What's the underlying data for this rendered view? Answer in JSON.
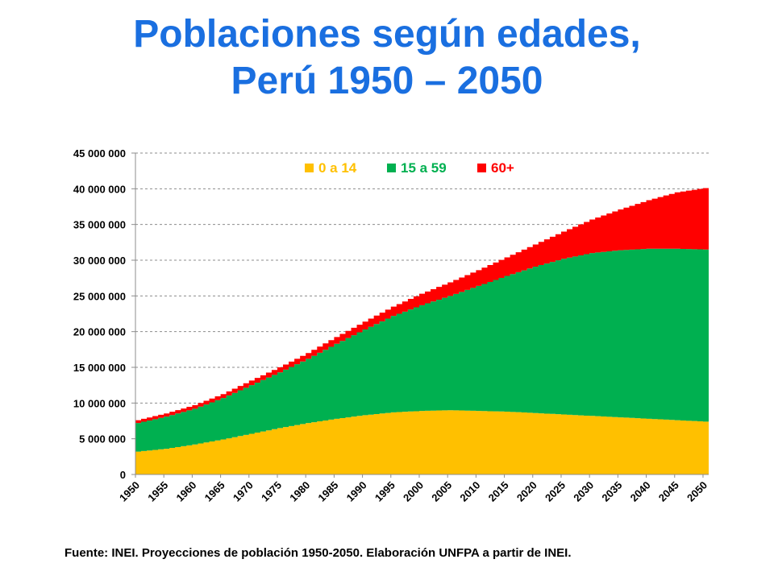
{
  "title": {
    "line1": "Poblaciones según edades,",
    "line2": "Perú 1950 – 2050"
  },
  "source": "Fuente: INEI. Proyecciones de población 1950-2050. Elaboración UNFPA a partir de INEI.",
  "colors": {
    "title": "#1a6fe0",
    "age_0_14": "#ffc000",
    "age_15_59": "#00b050",
    "age_60_plus": "#ff0000"
  },
  "chart_data": {
    "type": "area",
    "stacked": true,
    "x": [
      1950,
      1955,
      1960,
      1965,
      1970,
      1975,
      1980,
      1985,
      1990,
      1995,
      2000,
      2005,
      2010,
      2015,
      2020,
      2025,
      2030,
      2035,
      2040,
      2045,
      2050
    ],
    "series": [
      {
        "name": "0 a 14",
        "color": "#ffc000",
        "values": [
          3200000,
          3600000,
          4200000,
          4900000,
          5700000,
          6500000,
          7200000,
          7800000,
          8300000,
          8700000,
          8900000,
          9000000,
          8900000,
          8800000,
          8600000,
          8400000,
          8200000,
          8000000,
          7800000,
          7600000,
          7400000
        ]
      },
      {
        "name": "15 a 59",
        "color": "#00b050",
        "values": [
          4000000,
          4500000,
          5000000,
          5800000,
          6800000,
          7800000,
          9000000,
          10500000,
          12000000,
          13500000,
          14800000,
          16000000,
          17500000,
          19000000,
          20500000,
          21800000,
          22800000,
          23400000,
          23800000,
          24000000,
          24100000
        ]
      },
      {
        "name": "60+",
        "color": "#ff0000",
        "values": [
          400000,
          450000,
          500000,
          550000,
          650000,
          700000,
          800000,
          950000,
          1100000,
          1300000,
          1600000,
          1900000,
          2200000,
          2600000,
          3100000,
          3800000,
          4700000,
          5700000,
          6800000,
          7900000,
          8600000
        ]
      }
    ],
    "y_ticks": [
      "0",
      "5 000 000",
      "10 000 000",
      "15 000 000",
      "20 000 000",
      "25 000 000",
      "30 000 000",
      "35 000 000",
      "40 000 000",
      "45 000 000"
    ],
    "ylim": [
      0,
      45000000
    ],
    "xlim": [
      1950,
      2051
    ],
    "grid": true,
    "legend_position": "top-center",
    "step_width_years": 1
  }
}
